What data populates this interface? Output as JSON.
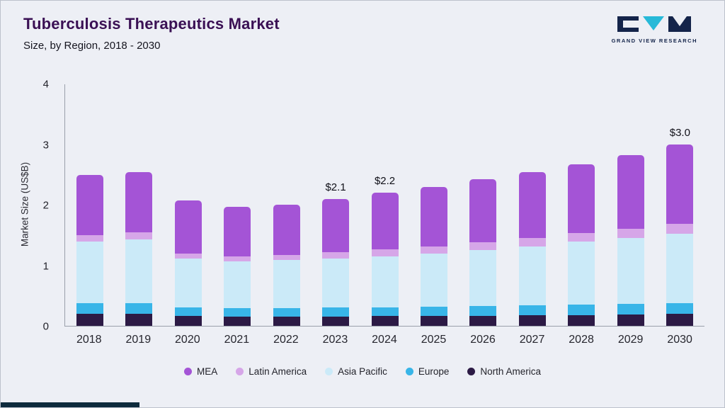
{
  "header": {
    "title": "Tuberculosis Therapeutics Market",
    "subtitle": "Size, by Region, 2018 - 2030",
    "logo_text": "GRAND VIEW RESEARCH"
  },
  "chart_data": {
    "type": "bar",
    "stacked": true,
    "title": "Tuberculosis Therapeutics Market Size, by Region, 2018 - 2030",
    "xlabel": "",
    "ylabel": "Market Size (US$B)",
    "ylim": [
      0,
      4
    ],
    "yticks": [
      0,
      1,
      2,
      3,
      4
    ],
    "grid": false,
    "legend_position": "bottom",
    "categories": [
      "2018",
      "2019",
      "2020",
      "2021",
      "2022",
      "2023",
      "2024",
      "2025",
      "2026",
      "2027",
      "2028",
      "2029",
      "2030"
    ],
    "series": [
      {
        "name": "North America",
        "color": "#2c1a45",
        "values": [
          0.2,
          0.2,
          0.16,
          0.15,
          0.15,
          0.15,
          0.16,
          0.17,
          0.17,
          0.18,
          0.18,
          0.19,
          0.2
        ]
      },
      {
        "name": "Europe",
        "color": "#38b5e8",
        "values": [
          0.18,
          0.18,
          0.14,
          0.14,
          0.14,
          0.15,
          0.15,
          0.15,
          0.16,
          0.16,
          0.17,
          0.17,
          0.18
        ]
      },
      {
        "name": "Asia Pacific",
        "color": "#cbeaf8",
        "values": [
          1.02,
          1.05,
          0.82,
          0.78,
          0.8,
          0.82,
          0.84,
          0.88,
          0.93,
          0.98,
          1.05,
          1.1,
          1.15
        ]
      },
      {
        "name": "Latin America",
        "color": "#d6a6e8",
        "values": [
          0.1,
          0.12,
          0.08,
          0.08,
          0.08,
          0.1,
          0.12,
          0.12,
          0.12,
          0.13,
          0.14,
          0.15,
          0.16
        ]
      },
      {
        "name": "MEA",
        "color": "#a454d6",
        "values": [
          1.0,
          1.0,
          0.88,
          0.82,
          0.84,
          0.88,
          0.93,
          0.98,
          1.05,
          1.1,
          1.14,
          1.22,
          1.31
        ]
      }
    ],
    "totals": [
      2.5,
      2.55,
      2.08,
      1.97,
      2.01,
      2.1,
      2.2,
      2.3,
      2.43,
      2.55,
      2.68,
      2.83,
      3.0
    ],
    "annotations": [
      {
        "category": "2023",
        "text": "$2.1"
      },
      {
        "category": "2024",
        "text": "$2.2"
      },
      {
        "category": "2030",
        "text": "$3.0"
      }
    ]
  }
}
